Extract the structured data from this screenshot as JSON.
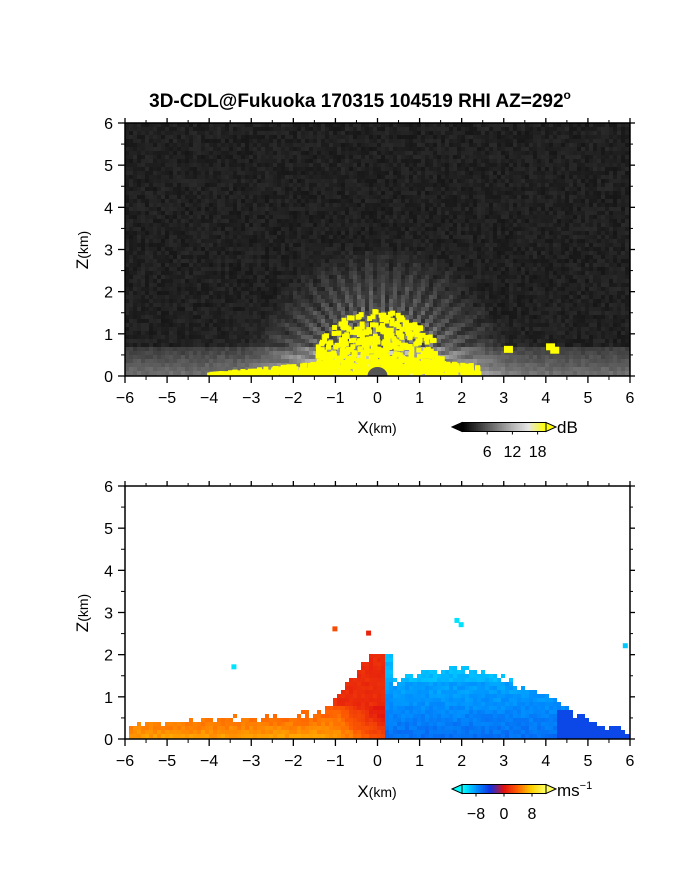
{
  "title": {
    "main": "3D-CDL@Fukuoka 170315 104519 RHI AZ=292",
    "superscript": "o"
  },
  "chart_data": [
    {
      "type": "heatmap",
      "panel": "top",
      "quantity": "intensity",
      "xlabel_main": "X",
      "xlabel_unit": "(km)",
      "ylabel_main": "Z",
      "ylabel_unit": "(km)",
      "xlim": [
        -6,
        6
      ],
      "ylim": [
        0,
        6
      ],
      "x_ticks": [
        -6,
        -5,
        -4,
        -3,
        -2,
        -1,
        0,
        1,
        2,
        3,
        4,
        5,
        6
      ],
      "y_ticks": [
        0,
        1,
        2,
        3,
        4,
        5,
        6
      ],
      "colorbar": {
        "unit": "dB",
        "ticks": [
          6,
          12,
          18
        ],
        "range": [
          0,
          20
        ],
        "colors": [
          "#000000",
          "#3a3a3a",
          "#787878",
          "#b4b4b4",
          "#e6e6e6",
          "#ffff00"
        ]
      }
    },
    {
      "type": "heatmap",
      "panel": "bottom",
      "quantity": "doppler velocity",
      "xlabel_main": "X",
      "xlabel_unit": "(km)",
      "ylabel_main": "Z",
      "ylabel_unit": "(km)",
      "xlim": [
        -6,
        6
      ],
      "ylim": [
        0,
        6
      ],
      "x_ticks": [
        -6,
        -5,
        -4,
        -3,
        -2,
        -1,
        0,
        1,
        2,
        3,
        4,
        5,
        6
      ],
      "y_ticks": [
        0,
        1,
        2,
        3,
        4,
        5,
        6
      ],
      "colorbar": {
        "unit_main": "ms",
        "unit_exp": "−1",
        "tick_labels": [
          "−8",
          "0",
          "8"
        ],
        "tick_values": [
          -8,
          0,
          8
        ],
        "range": [
          -12,
          12
        ],
        "colors": [
          "#00ffff",
          "#0090ff",
          "#1030e0",
          "#e01010",
          "#ff6000",
          "#ffd000",
          "#ffff60"
        ]
      }
    }
  ]
}
